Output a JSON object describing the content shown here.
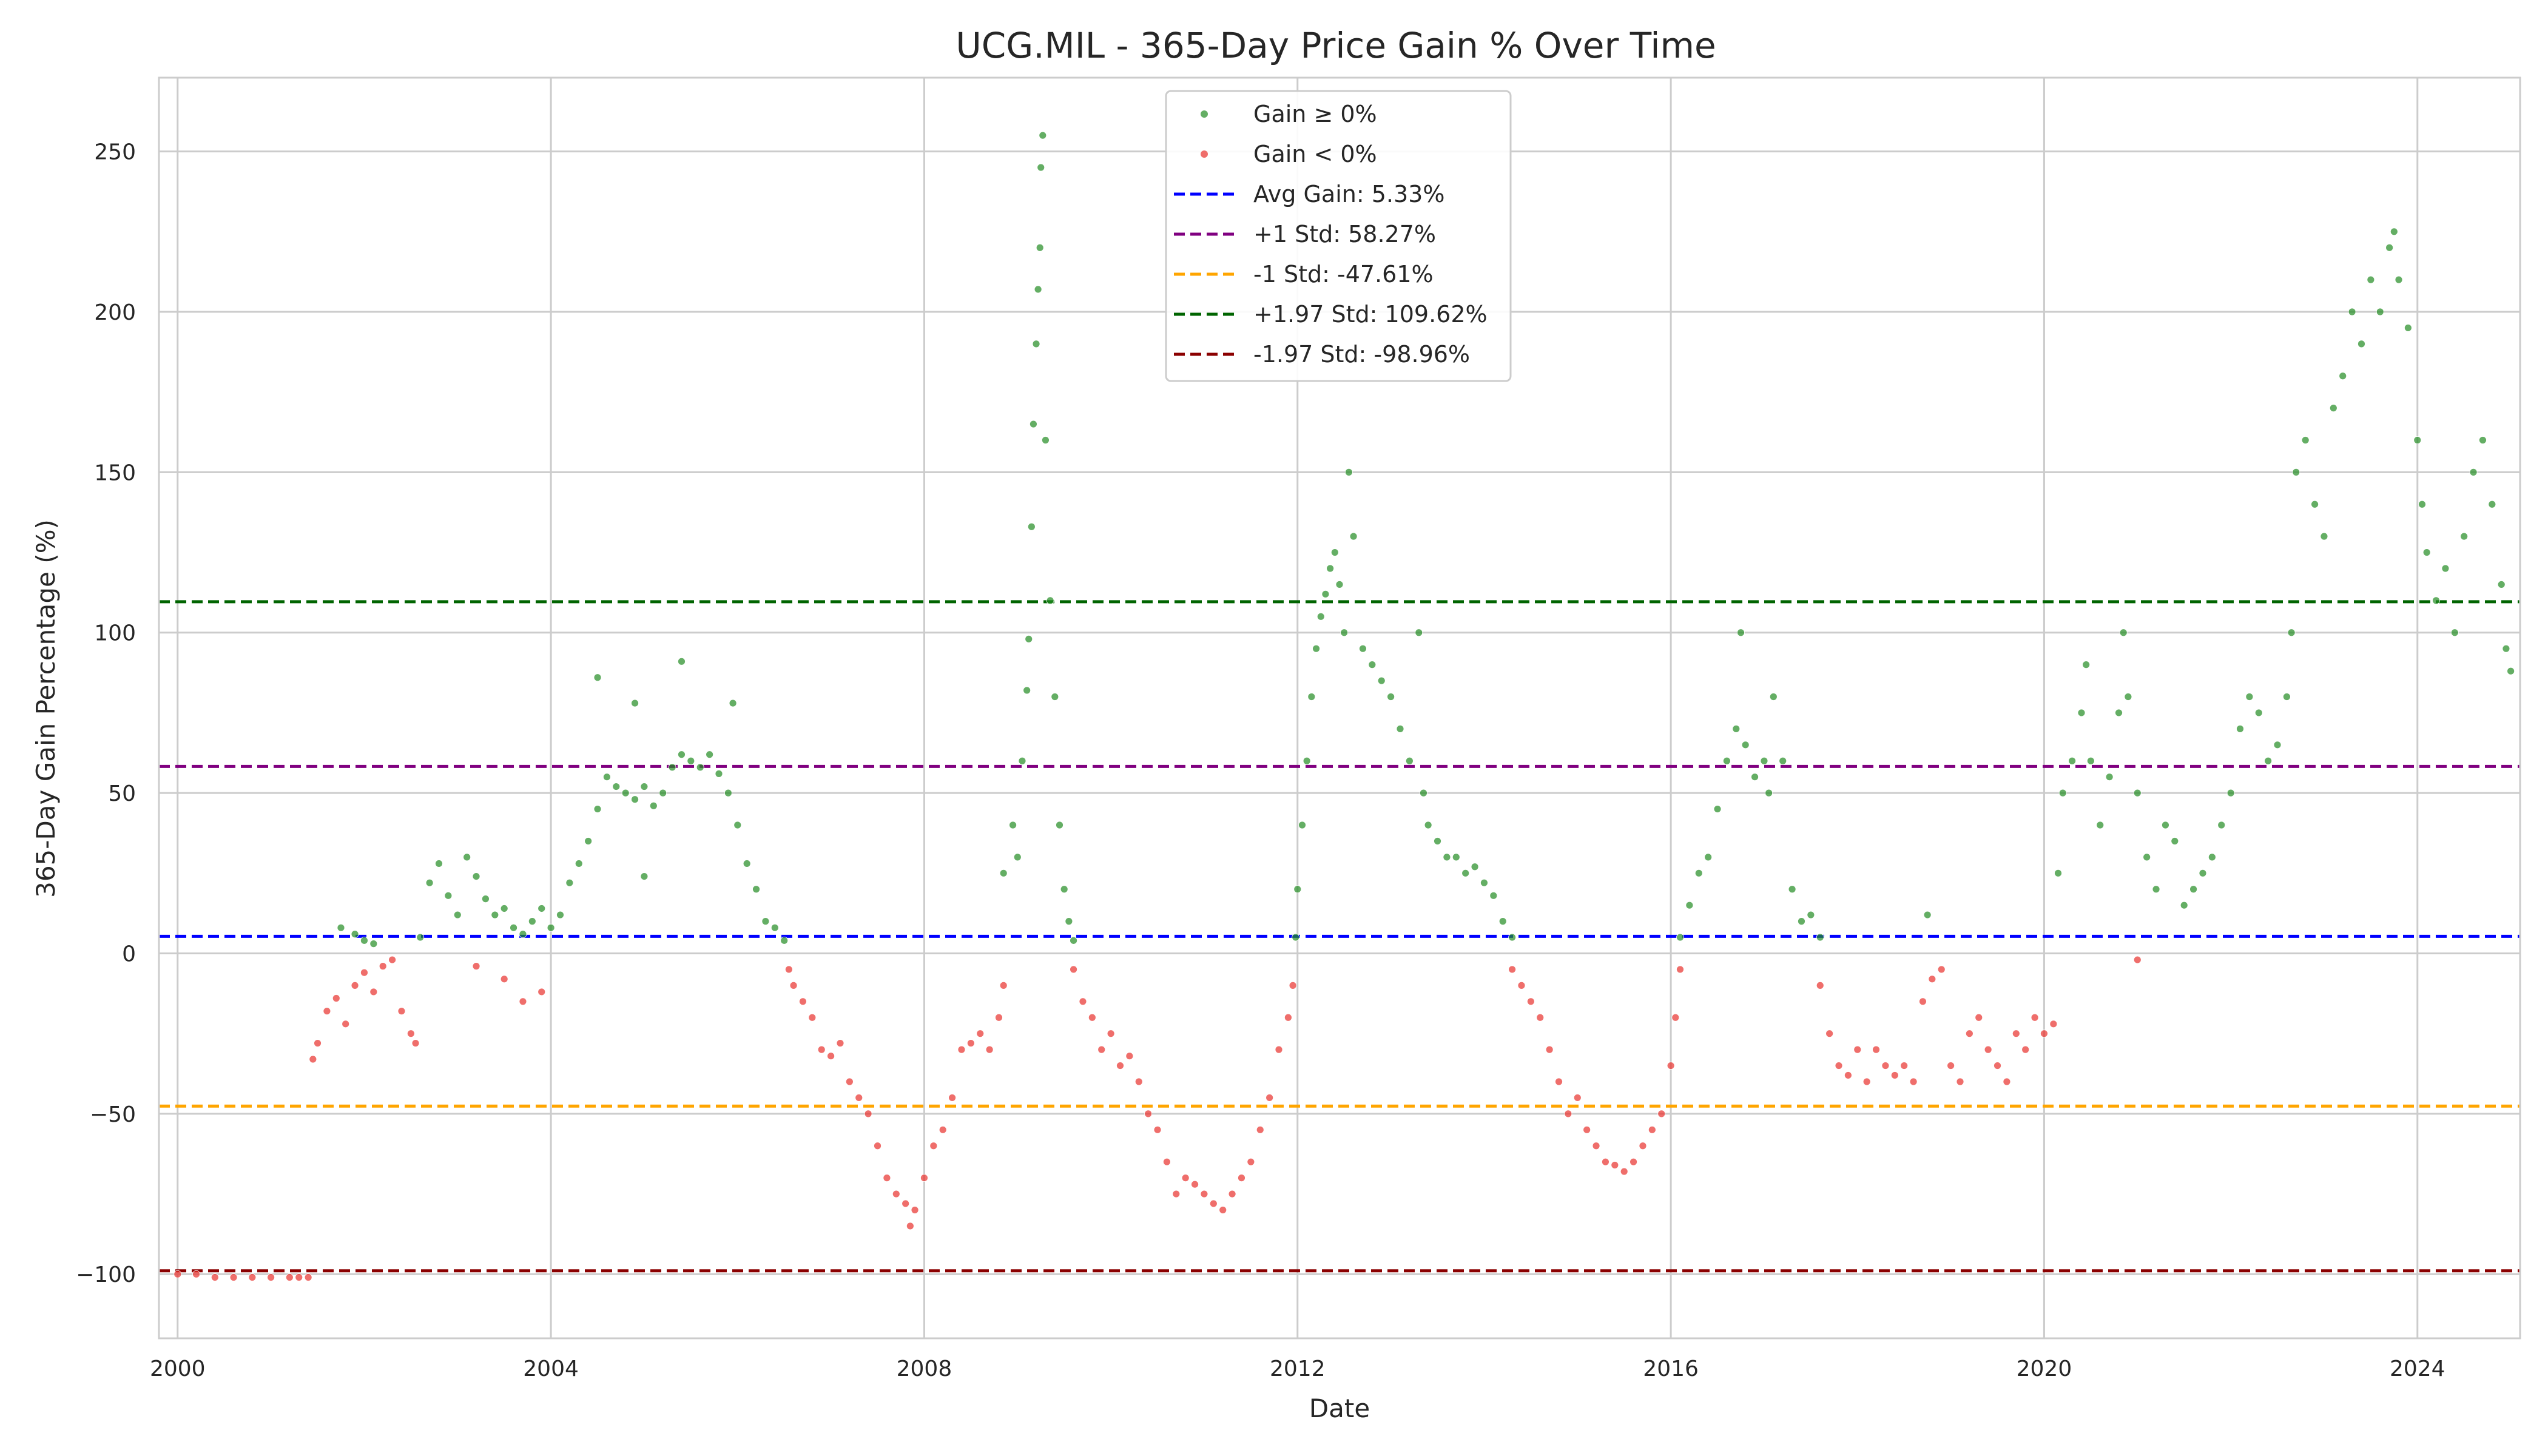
{
  "chart_data": {
    "type": "scatter",
    "title": "UCG.MIL - 365-Day Price Gain % Over Time",
    "xlabel": "Date",
    "ylabel": "365-Day Gain Percentage (%)",
    "xlim": [
      1999.8,
      2025.1
    ],
    "ylim": [
      -120,
      273
    ],
    "x_ticks": [
      2000,
      2004,
      2008,
      2012,
      2016,
      2020,
      2024
    ],
    "x_tick_labels": [
      "2000",
      "2004",
      "2008",
      "2012",
      "2016",
      "2020",
      "2024"
    ],
    "y_ticks": [
      -100,
      -50,
      0,
      50,
      100,
      150,
      200,
      250
    ],
    "y_tick_labels": [
      "−100",
      "−50",
      "0",
      "50",
      "100",
      "150",
      "200",
      "250"
    ],
    "grid": true,
    "legend_position": "upper-center",
    "series": [
      {
        "name": "Gain ≥ 0%",
        "color": "#228b22",
        "points": [
          [
            2001.75,
            8
          ],
          [
            2001.9,
            6
          ],
          [
            2002.0,
            4
          ],
          [
            2002.1,
            3
          ],
          [
            2002.6,
            5
          ],
          [
            2002.7,
            22
          ],
          [
            2002.8,
            28
          ],
          [
            2002.9,
            18
          ],
          [
            2003.0,
            12
          ],
          [
            2003.1,
            30
          ],
          [
            2003.2,
            24
          ],
          [
            2003.3,
            17
          ],
          [
            2003.4,
            12
          ],
          [
            2003.5,
            14
          ],
          [
            2003.6,
            8
          ],
          [
            2003.7,
            6
          ],
          [
            2003.8,
            10
          ],
          [
            2003.9,
            14
          ],
          [
            2004.0,
            8
          ],
          [
            2004.1,
            12
          ],
          [
            2004.2,
            22
          ],
          [
            2004.3,
            28
          ],
          [
            2004.4,
            35
          ],
          [
            2004.5,
            45
          ],
          [
            2004.6,
            55
          ],
          [
            2004.7,
            52
          ],
          [
            2004.8,
            50
          ],
          [
            2004.9,
            48
          ],
          [
            2005.0,
            52
          ],
          [
            2005.1,
            46
          ],
          [
            2005.2,
            50
          ],
          [
            2005.3,
            58
          ],
          [
            2005.4,
            62
          ],
          [
            2005.5,
            60
          ],
          [
            2005.6,
            58
          ],
          [
            2005.7,
            62
          ],
          [
            2005.8,
            56
          ],
          [
            2005.9,
            50
          ],
          [
            2006.0,
            40
          ],
          [
            2006.1,
            28
          ],
          [
            2006.2,
            20
          ],
          [
            2006.3,
            10
          ],
          [
            2006.4,
            8
          ],
          [
            2006.5,
            4
          ],
          [
            2004.5,
            86
          ],
          [
            2004.9,
            78
          ],
          [
            2005.4,
            91
          ],
          [
            2005.95,
            78
          ],
          [
            2005.0,
            24
          ],
          [
            2008.85,
            25
          ],
          [
            2008.95,
            40
          ],
          [
            2009.0,
            30
          ],
          [
            2009.05,
            60
          ],
          [
            2009.1,
            82
          ],
          [
            2009.12,
            98
          ],
          [
            2009.15,
            133
          ],
          [
            2009.17,
            165
          ],
          [
            2009.2,
            190
          ],
          [
            2009.22,
            207
          ],
          [
            2009.24,
            220
          ],
          [
            2009.25,
            245
          ],
          [
            2009.27,
            255
          ],
          [
            2009.3,
            160
          ],
          [
            2009.35,
            110
          ],
          [
            2009.4,
            80
          ],
          [
            2009.45,
            40
          ],
          [
            2009.5,
            20
          ],
          [
            2009.55,
            10
          ],
          [
            2009.6,
            4
          ],
          [
            2011.98,
            5
          ],
          [
            2012.0,
            20
          ],
          [
            2012.05,
            40
          ],
          [
            2012.1,
            60
          ],
          [
            2012.15,
            80
          ],
          [
            2012.2,
            95
          ],
          [
            2012.25,
            105
          ],
          [
            2012.3,
            112
          ],
          [
            2012.35,
            120
          ],
          [
            2012.4,
            125
          ],
          [
            2012.45,
            115
          ],
          [
            2012.5,
            100
          ],
          [
            2012.55,
            150
          ],
          [
            2012.6,
            130
          ],
          [
            2012.7,
            95
          ],
          [
            2012.8,
            90
          ],
          [
            2012.9,
            85
          ],
          [
            2013.0,
            80
          ],
          [
            2013.1,
            70
          ],
          [
            2013.2,
            60
          ],
          [
            2013.3,
            100
          ],
          [
            2013.35,
            50
          ],
          [
            2013.4,
            40
          ],
          [
            2013.5,
            35
          ],
          [
            2013.6,
            30
          ],
          [
            2013.7,
            30
          ],
          [
            2013.8,
            25
          ],
          [
            2013.9,
            27
          ],
          [
            2014.0,
            22
          ],
          [
            2014.1,
            18
          ],
          [
            2014.2,
            10
          ],
          [
            2014.3,
            5
          ],
          [
            2016.1,
            5
          ],
          [
            2016.2,
            15
          ],
          [
            2016.3,
            25
          ],
          [
            2016.4,
            30
          ],
          [
            2016.5,
            45
          ],
          [
            2016.6,
            60
          ],
          [
            2016.7,
            70
          ],
          [
            2016.75,
            100
          ],
          [
            2016.8,
            65
          ],
          [
            2016.9,
            55
          ],
          [
            2017.0,
            60
          ],
          [
            2017.05,
            50
          ],
          [
            2017.1,
            80
          ],
          [
            2017.2,
            60
          ],
          [
            2017.3,
            20
          ],
          [
            2017.4,
            10
          ],
          [
            2017.5,
            12
          ],
          [
            2017.6,
            5
          ],
          [
            2018.75,
            12
          ],
          [
            2020.15,
            25
          ],
          [
            2020.2,
            50
          ],
          [
            2020.3,
            60
          ],
          [
            2020.4,
            75
          ],
          [
            2020.45,
            90
          ],
          [
            2020.5,
            60
          ],
          [
            2020.6,
            40
          ],
          [
            2020.7,
            55
          ],
          [
            2020.8,
            75
          ],
          [
            2020.85,
            100
          ],
          [
            2020.9,
            80
          ],
          [
            2021.0,
            50
          ],
          [
            2021.1,
            30
          ],
          [
            2021.2,
            20
          ],
          [
            2021.3,
            40
          ],
          [
            2021.4,
            35
          ],
          [
            2021.5,
            15
          ],
          [
            2021.6,
            20
          ],
          [
            2021.7,
            25
          ],
          [
            2021.8,
            30
          ],
          [
            2021.9,
            40
          ],
          [
            2022.0,
            50
          ],
          [
            2022.1,
            70
          ],
          [
            2022.2,
            80
          ],
          [
            2022.3,
            75
          ],
          [
            2022.4,
            60
          ],
          [
            2022.5,
            65
          ],
          [
            2022.6,
            80
          ],
          [
            2022.65,
            100
          ],
          [
            2022.7,
            150
          ],
          [
            2022.8,
            160
          ],
          [
            2022.9,
            140
          ],
          [
            2023.0,
            130
          ],
          [
            2023.1,
            170
          ],
          [
            2023.2,
            180
          ],
          [
            2023.3,
            200
          ],
          [
            2023.4,
            190
          ],
          [
            2023.5,
            210
          ],
          [
            2023.6,
            200
          ],
          [
            2023.7,
            220
          ],
          [
            2023.75,
            225
          ],
          [
            2023.8,
            210
          ],
          [
            2023.9,
            195
          ],
          [
            2024.0,
            160
          ],
          [
            2024.05,
            140
          ],
          [
            2024.1,
            125
          ],
          [
            2024.2,
            110
          ],
          [
            2024.3,
            120
          ],
          [
            2024.4,
            100
          ],
          [
            2024.5,
            130
          ],
          [
            2024.6,
            150
          ],
          [
            2024.7,
            160
          ],
          [
            2024.8,
            140
          ],
          [
            2024.9,
            115
          ],
          [
            2024.95,
            95
          ],
          [
            2025.0,
            88
          ]
        ]
      },
      {
        "name": "Gain < 0%",
        "color": "#e8312c",
        "points": [
          [
            2000.0,
            -100
          ],
          [
            2000.2,
            -100
          ],
          [
            2000.4,
            -101
          ],
          [
            2000.6,
            -101
          ],
          [
            2000.8,
            -101
          ],
          [
            2001.0,
            -101
          ],
          [
            2001.2,
            -101
          ],
          [
            2001.3,
            -101
          ],
          [
            2001.4,
            -101
          ],
          [
            2001.45,
            -33
          ],
          [
            2001.5,
            -28
          ],
          [
            2001.6,
            -18
          ],
          [
            2001.7,
            -14
          ],
          [
            2001.8,
            -22
          ],
          [
            2001.9,
            -10
          ],
          [
            2002.0,
            -6
          ],
          [
            2002.1,
            -12
          ],
          [
            2002.2,
            -4
          ],
          [
            2002.3,
            -2
          ],
          [
            2002.4,
            -18
          ],
          [
            2002.5,
            -25
          ],
          [
            2002.55,
            -28
          ],
          [
            2003.2,
            -4
          ],
          [
            2003.5,
            -8
          ],
          [
            2003.7,
            -15
          ],
          [
            2003.9,
            -12
          ],
          [
            2006.55,
            -5
          ],
          [
            2006.6,
            -10
          ],
          [
            2006.7,
            -15
          ],
          [
            2006.8,
            -20
          ],
          [
            2006.9,
            -30
          ],
          [
            2007.0,
            -32
          ],
          [
            2007.1,
            -28
          ],
          [
            2007.2,
            -40
          ],
          [
            2007.3,
            -45
          ],
          [
            2007.4,
            -50
          ],
          [
            2007.5,
            -60
          ],
          [
            2007.6,
            -70
          ],
          [
            2007.7,
            -75
          ],
          [
            2007.8,
            -78
          ],
          [
            2007.85,
            -85
          ],
          [
            2007.9,
            -80
          ],
          [
            2008.0,
            -70
          ],
          [
            2008.1,
            -60
          ],
          [
            2008.2,
            -55
          ],
          [
            2008.3,
            -45
          ],
          [
            2008.4,
            -30
          ],
          [
            2008.5,
            -28
          ],
          [
            2008.6,
            -25
          ],
          [
            2008.7,
            -30
          ],
          [
            2008.8,
            -20
          ],
          [
            2008.85,
            -10
          ],
          [
            2009.6,
            -5
          ],
          [
            2009.7,
            -15
          ],
          [
            2009.8,
            -20
          ],
          [
            2009.9,
            -30
          ],
          [
            2010.0,
            -25
          ],
          [
            2010.1,
            -35
          ],
          [
            2010.2,
            -32
          ],
          [
            2010.3,
            -40
          ],
          [
            2010.4,
            -50
          ],
          [
            2010.5,
            -55
          ],
          [
            2010.6,
            -65
          ],
          [
            2010.7,
            -75
          ],
          [
            2010.8,
            -70
          ],
          [
            2010.9,
            -72
          ],
          [
            2011.0,
            -75
          ],
          [
            2011.1,
            -78
          ],
          [
            2011.2,
            -80
          ],
          [
            2011.3,
            -75
          ],
          [
            2011.4,
            -70
          ],
          [
            2011.5,
            -65
          ],
          [
            2011.6,
            -55
          ],
          [
            2011.7,
            -45
          ],
          [
            2011.8,
            -30
          ],
          [
            2011.9,
            -20
          ],
          [
            2011.95,
            -10
          ],
          [
            2014.3,
            -5
          ],
          [
            2014.4,
            -10
          ],
          [
            2014.5,
            -15
          ],
          [
            2014.6,
            -20
          ],
          [
            2014.7,
            -30
          ],
          [
            2014.8,
            -40
          ],
          [
            2014.9,
            -50
          ],
          [
            2015.0,
            -45
          ],
          [
            2015.1,
            -55
          ],
          [
            2015.2,
            -60
          ],
          [
            2015.3,
            -65
          ],
          [
            2015.4,
            -66
          ],
          [
            2015.5,
            -68
          ],
          [
            2015.6,
            -65
          ],
          [
            2015.7,
            -60
          ],
          [
            2015.8,
            -55
          ],
          [
            2015.9,
            -50
          ],
          [
            2016.0,
            -35
          ],
          [
            2016.05,
            -20
          ],
          [
            2016.1,
            -5
          ],
          [
            2017.6,
            -10
          ],
          [
            2017.7,
            -25
          ],
          [
            2017.8,
            -35
          ],
          [
            2017.9,
            -38
          ],
          [
            2018.0,
            -30
          ],
          [
            2018.1,
            -40
          ],
          [
            2018.2,
            -30
          ],
          [
            2018.3,
            -35
          ],
          [
            2018.4,
            -38
          ],
          [
            2018.5,
            -35
          ],
          [
            2018.6,
            -40
          ],
          [
            2018.7,
            -15
          ],
          [
            2018.8,
            -8
          ],
          [
            2018.9,
            -5
          ],
          [
            2019.0,
            -35
          ],
          [
            2019.1,
            -40
          ],
          [
            2019.2,
            -25
          ],
          [
            2019.3,
            -20
          ],
          [
            2019.4,
            -30
          ],
          [
            2019.5,
            -35
          ],
          [
            2019.6,
            -40
          ],
          [
            2019.7,
            -25
          ],
          [
            2019.8,
            -30
          ],
          [
            2019.9,
            -20
          ],
          [
            2020.0,
            -25
          ],
          [
            2020.1,
            -22
          ],
          [
            2021.0,
            -2
          ]
        ]
      }
    ],
    "reference_lines": [
      {
        "name": "Avg Gain: 5.33%",
        "value": 5.33,
        "color": "#0000ff"
      },
      {
        "name": "+1 Std: 58.27%",
        "value": 58.27,
        "color": "#800080"
      },
      {
        "name": "-1 Std: -47.61%",
        "value": -47.61,
        "color": "#ffa500"
      },
      {
        "name": "+1.97 Std: 109.62%",
        "value": 109.62,
        "color": "#006400"
      },
      {
        "name": "-1.97 Std: -98.96%",
        "value": -98.96,
        "color": "#8b0000"
      }
    ]
  }
}
